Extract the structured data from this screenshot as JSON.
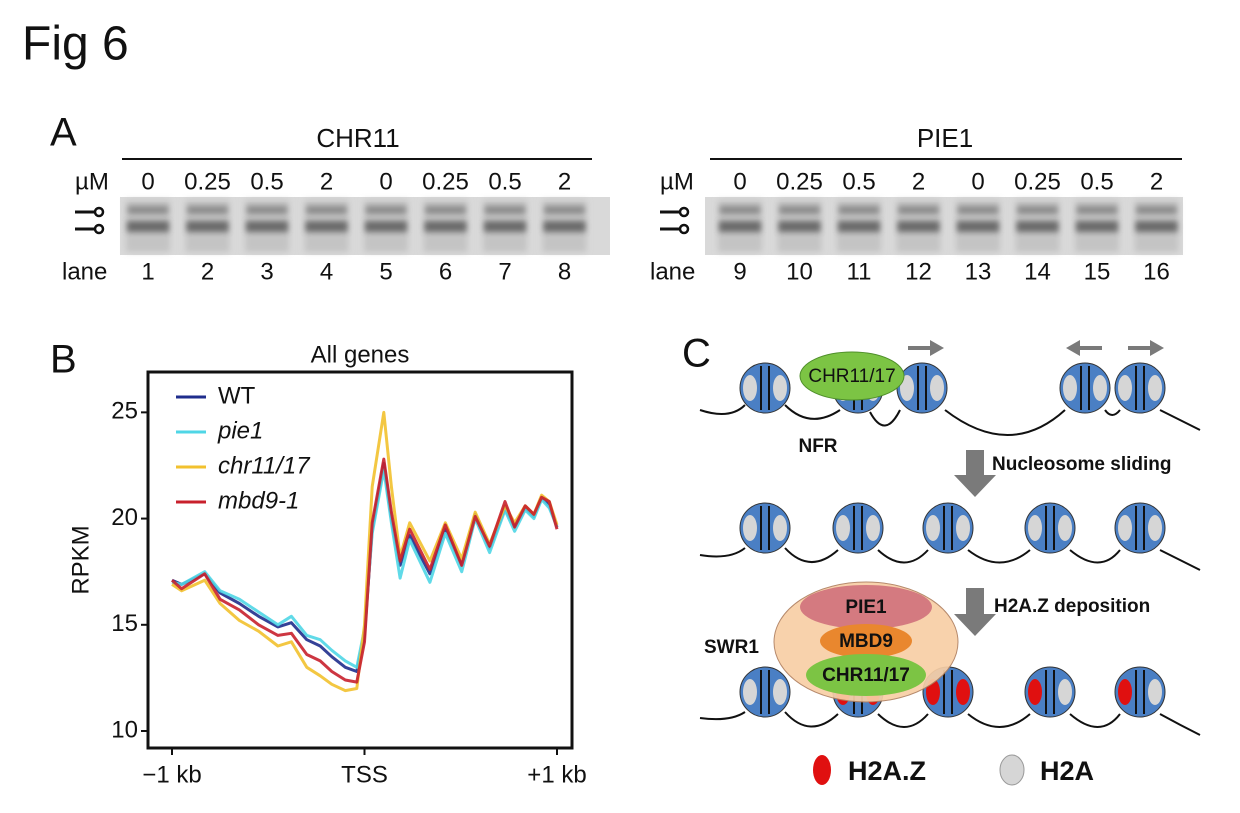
{
  "figure_title": "Fig 6",
  "panel_a": {
    "letter": "A",
    "unit_label": "µM",
    "lane_label": "lane",
    "gels": [
      {
        "name": "CHR11",
        "concentrations": [
          "0",
          "0.25",
          "0.5",
          "2",
          "0",
          "0.25",
          "0.5",
          "2"
        ],
        "lanes": [
          "1",
          "2",
          "3",
          "4",
          "5",
          "6",
          "7",
          "8"
        ]
      },
      {
        "name": "PIE1",
        "concentrations": [
          "0",
          "0.25",
          "0.5",
          "2",
          "0",
          "0.25",
          "0.5",
          "2"
        ],
        "lanes": [
          "9",
          "10",
          "11",
          "12",
          "13",
          "14",
          "15",
          "16"
        ]
      }
    ]
  },
  "chart_data": {
    "type": "line",
    "letter": "B",
    "title": "All genes",
    "y_label": "RPKM",
    "x": [
      -1000,
      -950,
      -830,
      -750,
      -650,
      -550,
      -450,
      -380,
      -300,
      -230,
      -170,
      -100,
      -40,
      0,
      40,
      100,
      140,
      185,
      235,
      340,
      420,
      505,
      575,
      650,
      730,
      780,
      835,
      880,
      920,
      960,
      1000
    ],
    "xlim": [
      -1000,
      1000
    ],
    "xticks": [
      {
        "value": -1000,
        "label": "−1 kb"
      },
      {
        "value": 0,
        "label": "TSS"
      },
      {
        "value": 1000,
        "label": "+1 kb"
      }
    ],
    "ylim": [
      9.2,
      26.9
    ],
    "yticks": [
      10,
      15,
      20,
      25
    ],
    "legend": "upper left",
    "series": [
      {
        "name": "WT",
        "color": "#1f2d8c",
        "values": [
          17.1,
          16.9,
          17.4,
          16.5,
          16.0,
          15.4,
          14.9,
          15.1,
          14.3,
          14.0,
          13.5,
          13.0,
          12.8,
          14.5,
          19.5,
          22.6,
          20.0,
          17.8,
          19.2,
          17.4,
          19.5,
          17.8,
          20.2,
          18.6,
          20.5,
          19.6,
          20.5,
          20.1,
          21.0,
          20.6,
          19.6
        ]
      },
      {
        "name": "pie1",
        "color": "#4fd6e6",
        "values": [
          17.0,
          16.9,
          17.5,
          16.6,
          16.2,
          15.6,
          15.0,
          15.4,
          14.5,
          14.3,
          13.8,
          13.3,
          13.0,
          14.8,
          19.3,
          22.3,
          19.8,
          17.2,
          19.0,
          17.0,
          19.3,
          17.5,
          20.0,
          18.4,
          20.4,
          19.4,
          20.4,
          20.0,
          20.9,
          20.5,
          19.6
        ]
      },
      {
        "name": "chr11/17",
        "color": "#f2c12e",
        "values": [
          16.9,
          16.6,
          17.1,
          16.0,
          15.2,
          14.7,
          14.0,
          14.2,
          13.0,
          12.6,
          12.2,
          11.9,
          12.0,
          15.0,
          21.5,
          25.0,
          21.5,
          18.2,
          19.8,
          18.0,
          19.8,
          18.1,
          20.3,
          18.8,
          20.6,
          19.8,
          20.6,
          20.2,
          21.1,
          20.8,
          19.7
        ]
      },
      {
        "name": "mbd9-1",
        "color": "#c8202c",
        "values": [
          17.1,
          16.7,
          17.4,
          16.2,
          15.7,
          15.0,
          14.5,
          14.6,
          13.6,
          13.3,
          12.8,
          12.4,
          12.3,
          14.2,
          19.8,
          22.8,
          20.3,
          18.0,
          19.5,
          17.6,
          19.7,
          17.8,
          20.1,
          18.7,
          20.8,
          19.6,
          20.6,
          20.2,
          21.0,
          20.8,
          19.5
        ]
      }
    ]
  },
  "panel_c": {
    "letter": "C",
    "remodeler": "CHR11/17",
    "nfr": "NFR",
    "step1": "Nucleosome sliding",
    "step2": "H2A.Z deposition",
    "complex_name": "SWR1",
    "complex_parts": [
      "PIE1",
      "MBD9",
      "CHR11/17"
    ],
    "legend": [
      "H2A.Z",
      "H2A"
    ]
  }
}
